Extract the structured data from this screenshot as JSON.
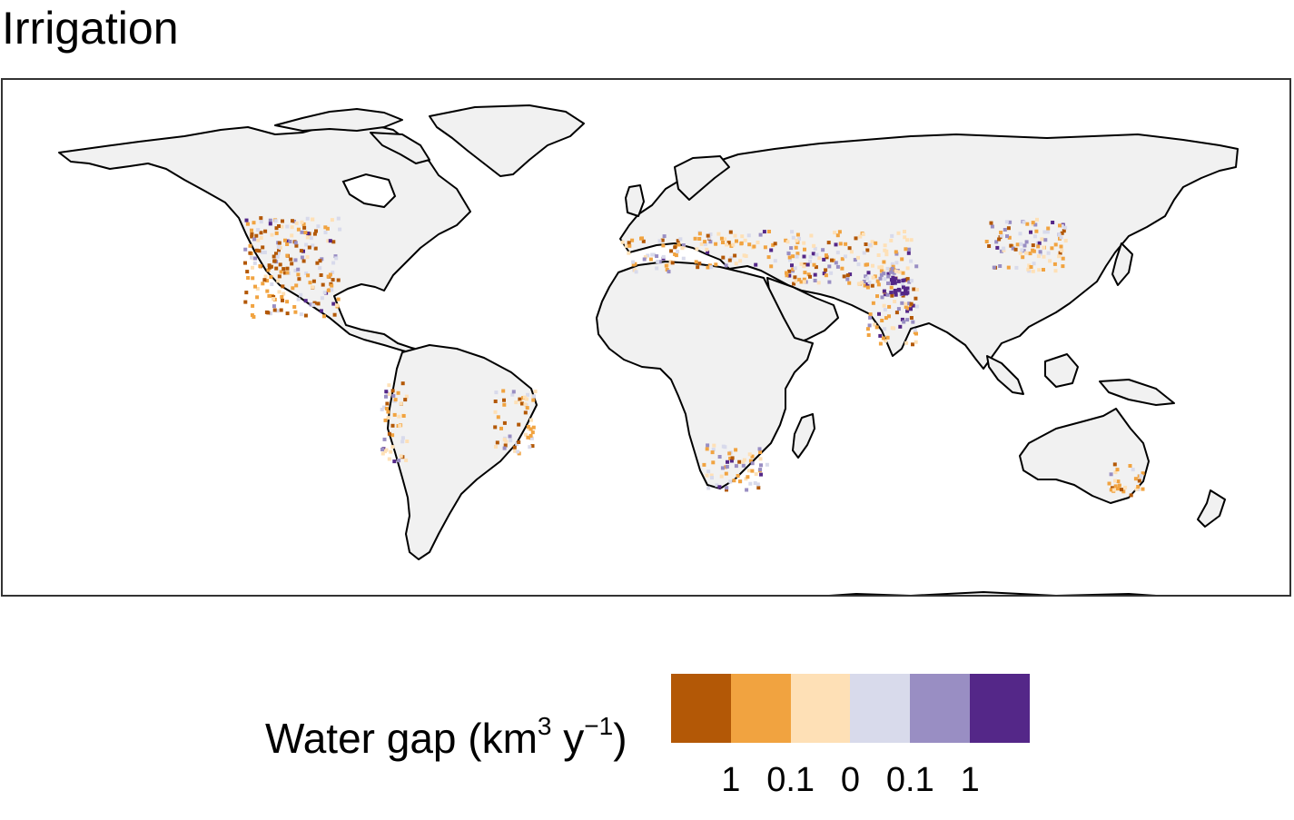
{
  "title": "Irrigation",
  "legend": {
    "title_main": "Water gap (km",
    "title_sup1": "3",
    "title_mid": " y",
    "title_sup2": "−1",
    "title_end": ")",
    "bins": [
      {
        "color": "#b35806",
        "meaning": "deficit, large"
      },
      {
        "color": "#f1a340",
        "meaning": "deficit, medium"
      },
      {
        "color": "#fee0b6",
        "meaning": "deficit, small"
      },
      {
        "color": "#d8daeb",
        "meaning": "surplus, small"
      },
      {
        "color": "#998ec3",
        "meaning": "surplus, medium"
      },
      {
        "color": "#542788",
        "meaning": "surplus, large"
      }
    ],
    "tick_labels": [
      "1",
      "0.1",
      "0",
      "0.1",
      "1"
    ]
  },
  "map": {
    "projection": "equirectangular world map",
    "land_color": "#f1f1f1",
    "coastline_color": "#000000"
  }
}
